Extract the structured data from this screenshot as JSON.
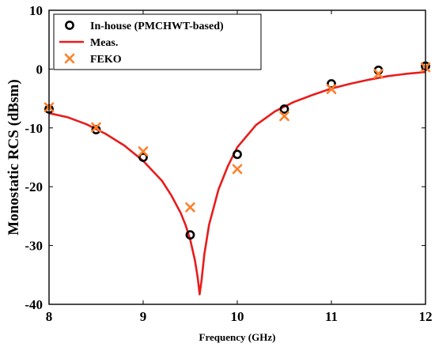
{
  "chart_data": {
    "type": "line",
    "title": "",
    "xlabel": "Frequency (GHz)",
    "ylabel": "Monostatic RCS (dBsm)",
    "xlim": [
      8,
      12
    ],
    "ylim": [
      -40,
      10
    ],
    "xticks": [
      8,
      9,
      10,
      11,
      12
    ],
    "yticks": [
      -40,
      -30,
      -20,
      -10,
      0,
      10
    ],
    "grid": false,
    "legend_position": "top-left",
    "series": [
      {
        "name": "In-house (PMCHWT-based)",
        "kind": "scatter",
        "marker": "circle",
        "color": "#000000",
        "x": [
          8,
          8.5,
          9,
          9.5,
          10,
          10.5,
          11,
          11.5,
          12
        ],
        "y": [
          -6.8,
          -10.3,
          -15.0,
          -28.2,
          -14.5,
          -6.8,
          -2.5,
          -0.2,
          0.5
        ]
      },
      {
        "name": "Meas.",
        "kind": "line",
        "color": "#e81c1c",
        "x": [
          8,
          8.2,
          8.4,
          8.6,
          8.8,
          9.0,
          9.2,
          9.3,
          9.4,
          9.45,
          9.5,
          9.55,
          9.58,
          9.6,
          9.62,
          9.65,
          9.7,
          9.8,
          9.9,
          10.0,
          10.2,
          10.4,
          10.6,
          10.8,
          11.0,
          11.2,
          11.4,
          11.6,
          11.8,
          12.0
        ],
        "y": [
          -7.5,
          -8.2,
          -9.4,
          -11.0,
          -13.0,
          -15.6,
          -19.0,
          -21.5,
          -24.5,
          -26.5,
          -29.0,
          -32.5,
          -35.5,
          -38.3,
          -36.0,
          -31.5,
          -26.5,
          -20.5,
          -16.5,
          -13.3,
          -9.5,
          -7.2,
          -5.6,
          -4.4,
          -3.3,
          -2.5,
          -1.8,
          -1.2,
          -0.8,
          -0.5
        ]
      },
      {
        "name": "FEKO",
        "kind": "scatter",
        "marker": "x",
        "color": "#ff7f2a",
        "x": [
          8,
          8.5,
          9,
          9.5,
          10,
          10.5,
          11,
          11.5,
          12
        ],
        "y": [
          -6.5,
          -9.9,
          -14.0,
          -23.5,
          -17.0,
          -8.0,
          -3.4,
          -0.8,
          0.3
        ]
      }
    ]
  }
}
